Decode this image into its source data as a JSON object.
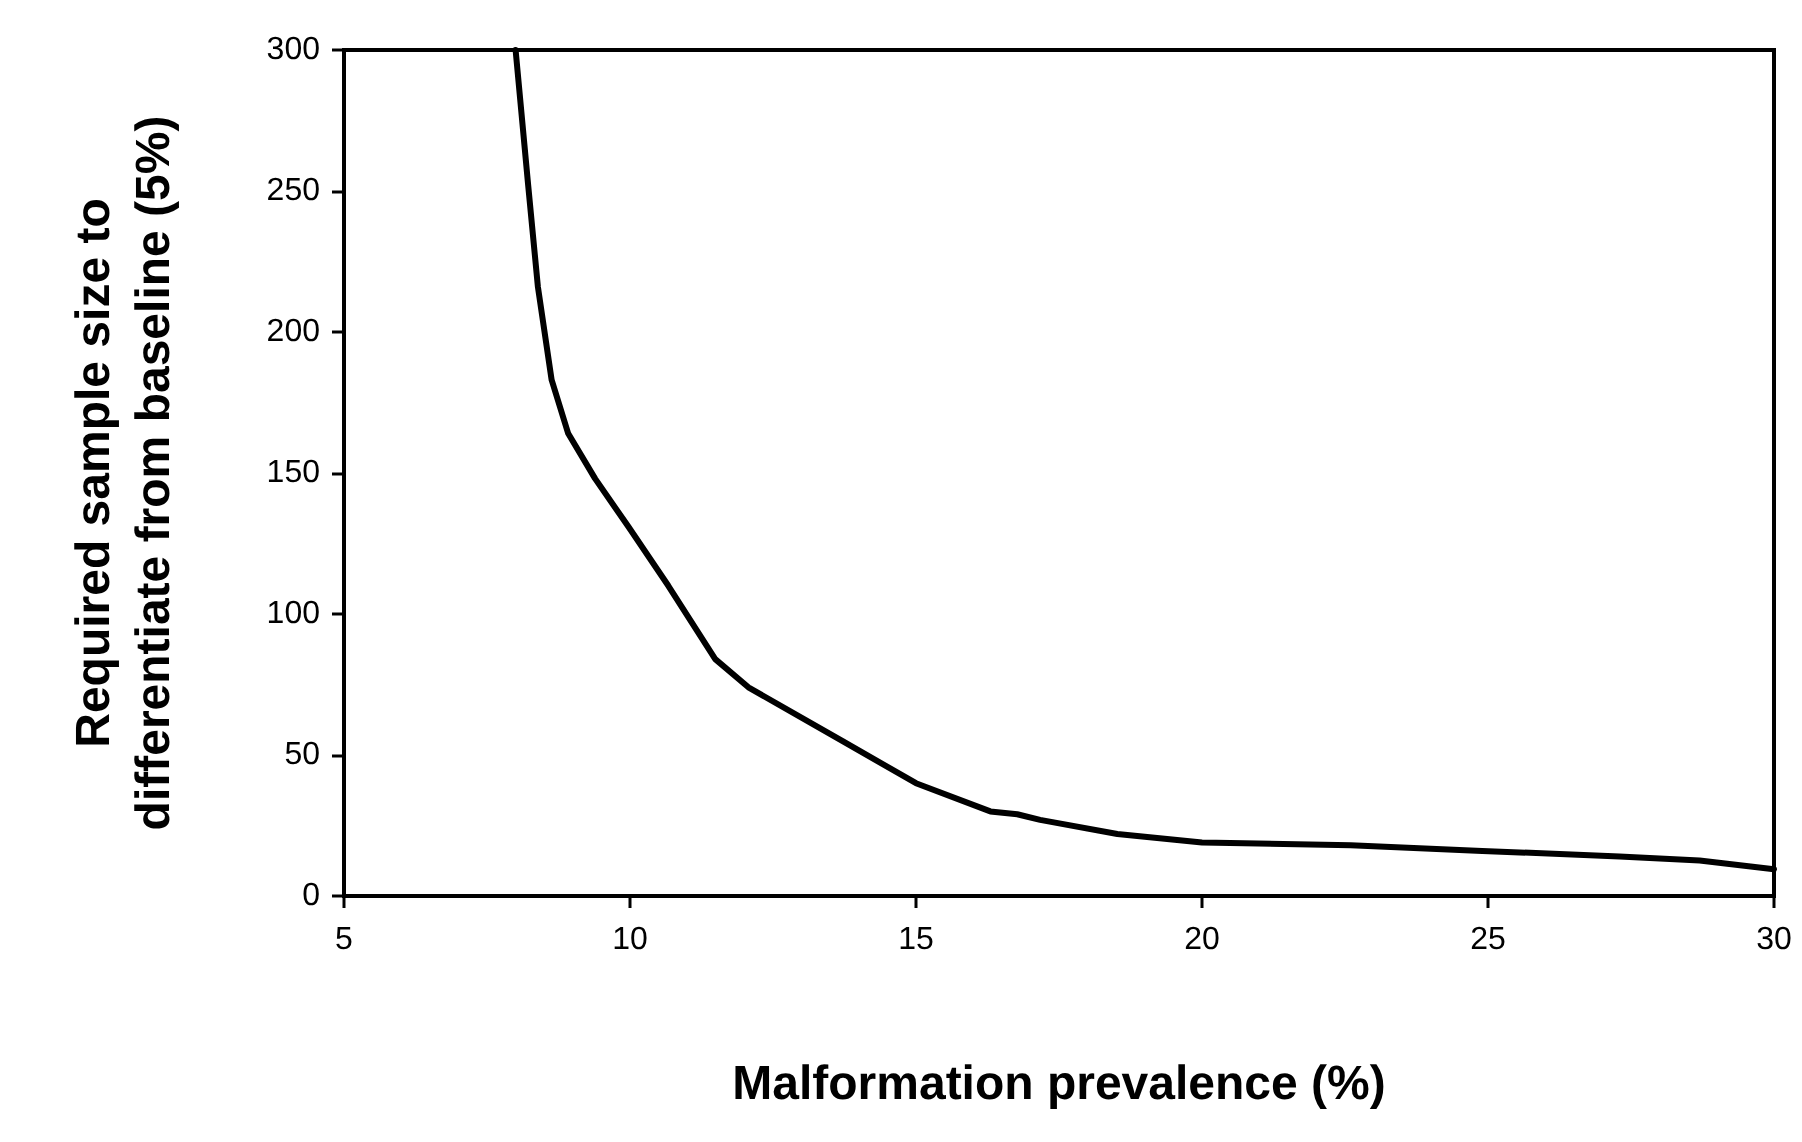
{
  "chart_data": {
    "type": "line",
    "xlabel": "Malformation prevalence (%)",
    "ylabel": "Required sample size to\ndifferentiate from baseline (5%)",
    "series": [
      {
        "color": "#000000",
        "x": [
          8.0,
          8.22,
          8.39,
          8.63,
          8.92,
          9.39,
          9.97,
          10.67,
          11.49,
          12.07,
          13.71,
          15.0,
          16.3,
          16.77,
          17.17,
          18.52,
          20.0,
          22.6,
          24.9,
          27.3,
          28.7,
          30.0
        ],
        "values": [
          300,
          252,
          216,
          183,
          164,
          148,
          131,
          110,
          84,
          74,
          55,
          40,
          30,
          29,
          27,
          22,
          19,
          18,
          16,
          14,
          12.6,
          9.5
        ]
      }
    ],
    "xlim": [
      5,
      30
    ],
    "xticks": [
      5,
      10,
      15,
      20,
      25,
      30
    ],
    "ylim": [
      0,
      300
    ],
    "yticks": [
      0,
      50,
      100,
      150,
      200,
      250,
      300
    ],
    "grid": false,
    "marker": "none",
    "line_style": "solid"
  }
}
